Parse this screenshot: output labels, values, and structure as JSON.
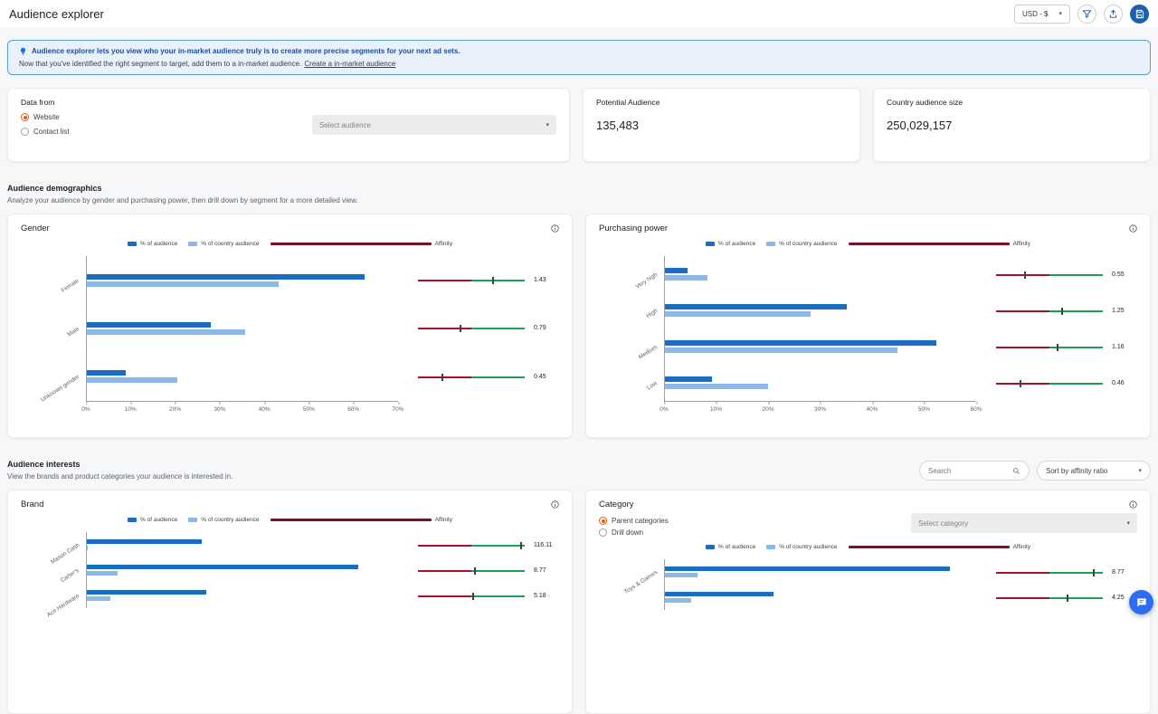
{
  "header": {
    "title": "Audience explorer",
    "currency": "USD - $"
  },
  "banner": {
    "line1": "Audience explorer lets you view who your in-market audience truly is to create more precise segments for your next ad sets.",
    "line2": "Now that you've identified the right segment to target, add them to a in-market audience.",
    "link_label": "Create a in-market audience"
  },
  "data_from": {
    "title": "Data from",
    "option_website": "Website",
    "option_contact": "Contact list",
    "selected": "Website",
    "audience_placeholder": "Select audience"
  },
  "stats": {
    "potential": {
      "label": "Potential Audience",
      "value": "135,483"
    },
    "country": {
      "label": "Country audience size",
      "value": "250,029,157"
    }
  },
  "sections": {
    "demographics": {
      "title": "Audience demographics",
      "subtitle": "Analyze your audience by gender and purchasing power, then drill down by segment for a more detailed view."
    },
    "interests": {
      "title": "Audience interests",
      "subtitle": "View the brands and product categories your audience is interested in.",
      "search_placeholder": "Search",
      "sort_label": "Sort by affinity ratio"
    }
  },
  "category_controls": {
    "option_parent": "Parent categories",
    "option_drill": "Drill down",
    "selected": "Parent categories",
    "select_placeholder": "Select category"
  },
  "legend": [
    "% of audience",
    "% of country audience",
    "Affinity"
  ],
  "icons": {
    "currency_caret": "chevron-down",
    "filter": "funnel",
    "export": "upload",
    "save": "save",
    "info": "info",
    "search": "magnifier",
    "tip": "lightbulb",
    "chat": "chat-bubble"
  },
  "colors": {
    "audience_bar": "#1a6ec0",
    "country_bar": "#8ab8e8",
    "affinity_red": "#a50e2d",
    "affinity_green": "#1e9e5a",
    "radio_selected": "#e8590c",
    "banner_border": "#5b9bd5",
    "fab_blue": "#2b6ef2"
  },
  "chart_data": [
    {
      "type": "bar",
      "orientation": "horizontal",
      "title": "Gender",
      "categories": [
        "Female",
        "Male",
        "Unknown gender"
      ],
      "series": [
        {
          "name": "% of audience",
          "values": [
            62.4,
            27.8,
            8.7
          ]
        },
        {
          "name": "% of country audience",
          "values": [
            43.2,
            35.6,
            20.3
          ]
        }
      ],
      "affinity": [
        1.43,
        0.79,
        0.45
      ],
      "x_ticks": [
        "0%",
        "10%",
        "20%",
        "30%",
        "40%",
        "50%",
        "60%",
        "70%"
      ],
      "xmax": 70,
      "aff_max": 2,
      "legend_position": "top"
    },
    {
      "type": "bar",
      "orientation": "horizontal",
      "title": "Purchasing power",
      "categories": [
        "Very high",
        "High",
        "Medium",
        "Low"
      ],
      "series": [
        {
          "name": "% of audience",
          "values": [
            4.4,
            35.1,
            52.3,
            9.0
          ]
        },
        {
          "name": "% of country audience",
          "values": [
            8.2,
            28.1,
            44.8,
            19.9
          ]
        }
      ],
      "affinity": [
        0.55,
        1.25,
        1.16,
        0.46
      ],
      "x_ticks": [
        "0%",
        "10%",
        "20%",
        "30%",
        "40%",
        "50%",
        "60%"
      ],
      "xmax": 60,
      "aff_max": 2,
      "legend_position": "top"
    },
    {
      "type": "bar",
      "orientation": "horizontal",
      "title": "Brand",
      "categories": [
        "Mason Cash",
        "Carter's",
        "Ace Hardware"
      ],
      "series": [
        {
          "name": "% of audience",
          "values": [
            25.8,
            61.0,
            26.9
          ]
        },
        {
          "name": "% of country audience",
          "values": [
            0.3,
            7.0,
            5.2
          ]
        }
      ],
      "affinity": [
        116.11,
        8.77,
        5.18
      ],
      "x_ticks": [],
      "xmax": 70,
      "aff_max": 120,
      "legend_position": "top"
    },
    {
      "type": "bar",
      "orientation": "horizontal",
      "title": "Category",
      "categories": [
        "Toys & Games",
        ""
      ],
      "series": [
        {
          "name": "% of audience",
          "values": [
            64.0,
            24.5
          ]
        },
        {
          "name": "% of country audience",
          "values": [
            7.3,
            5.8
          ]
        }
      ],
      "affinity": [
        8.77,
        4.25
      ],
      "x_ticks": [],
      "xmax": 70,
      "aff_max": 10,
      "legend_position": "top"
    }
  ]
}
